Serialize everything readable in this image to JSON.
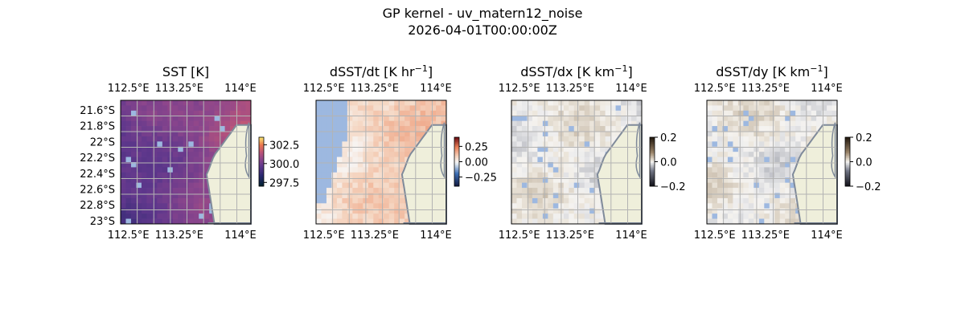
{
  "figure": {
    "title_line1": "GP kernel - uv_matern12_noise",
    "title_line2": "2026-04-01T00:00:00Z"
  },
  "colors": {
    "land": "#efefdb",
    "coast": "#7f8a9a",
    "nan_ocean": "#9db8e0",
    "grid": "#b3b3b3"
  },
  "chart_data": [
    {
      "type": "heatmap",
      "title_main": "SST [K]",
      "title_sup": "",
      "title_tail": "",
      "x_ticks": [
        "112.5°E",
        "113.25°E",
        "114°E"
      ],
      "y_ticks": [
        "21.6°S",
        "21.8°S",
        "22°S",
        "22.2°S",
        "22.4°S",
        "22.6°S",
        "22.8°S",
        "23°S"
      ],
      "colormap": "thermal",
      "colorbar": {
        "ticks": [
          302.5,
          300.0,
          297.5
        ],
        "labels": [
          "302.5",
          "300.0",
          "297.5"
        ],
        "range": [
          297.0,
          303.5
        ]
      },
      "value_estimate": {
        "min": 298.5,
        "max": 302.0
      }
    },
    {
      "type": "heatmap",
      "title_main": "dSST/dt [K hr",
      "title_sup": "−1",
      "title_tail": "]",
      "x_ticks": [
        "112.5°E",
        "113.25°E",
        "114°E"
      ],
      "y_ticks": [],
      "colormap": "diverging",
      "colorbar": {
        "ticks": [
          0.25,
          0.0,
          -0.25
        ],
        "labels": [
          "0.25",
          "0.00",
          "−0.25"
        ],
        "range": [
          -0.4,
          0.4
        ]
      },
      "value_estimate": {
        "min": 0.0,
        "max": 0.3
      }
    },
    {
      "type": "heatmap",
      "title_main": "dSST/dx [K km",
      "title_sup": "−1",
      "title_tail": "]",
      "x_ticks": [
        "112.5°E",
        "113.25°E",
        "114°E"
      ],
      "y_ticks": [],
      "colormap": "balance",
      "colorbar": {
        "ticks": [
          0.2,
          0.0,
          -0.2
        ],
        "labels": [
          "0.2",
          "0.0",
          "−0.2"
        ],
        "range": [
          -0.2,
          0.2
        ]
      },
      "value_estimate": {
        "min": -0.05,
        "max": 0.05
      }
    },
    {
      "type": "heatmap",
      "title_main": "dSST/dy [K km",
      "title_sup": "−1",
      "title_tail": "]",
      "x_ticks": [
        "112.5°E",
        "113.25°E",
        "114°E"
      ],
      "y_ticks": [],
      "colormap": "balance",
      "colorbar": {
        "ticks": [
          0.2,
          0.0,
          -0.2
        ],
        "labels": [
          "0.2",
          "0.0",
          "−0.2"
        ],
        "range": [
          -0.2,
          0.2
        ]
      },
      "value_estimate": {
        "min": -0.05,
        "max": 0.05
      }
    }
  ]
}
